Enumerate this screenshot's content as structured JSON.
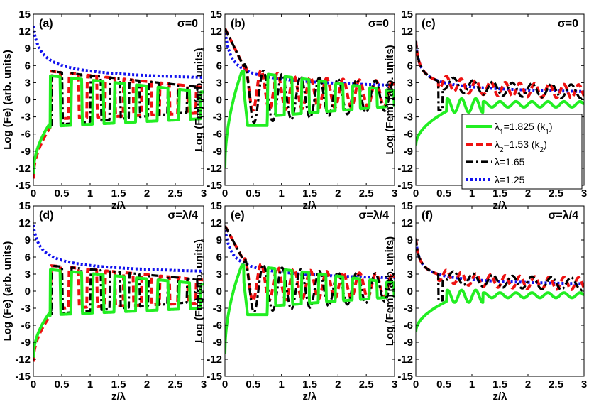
{
  "figure": {
    "x_label": "z/λ",
    "x_ticks": [
      "0",
      "0.5",
      "1",
      "1.5",
      "2",
      "2.5",
      "3"
    ],
    "y_ticks": [
      "-15",
      "-12",
      "-9",
      "-6",
      "-3",
      "0",
      "3",
      "6",
      "9",
      "12",
      "15"
    ],
    "colors": {
      "l1": "#22ee22",
      "l2": "#ee1111",
      "l3": "#000000",
      "l4": "#1111ee"
    }
  },
  "legend": {
    "entries": [
      {
        "main": "λ",
        "sub": "1",
        "rest": "=1.825 (k",
        "sub2": "1",
        "close": ")"
      },
      {
        "main": "λ",
        "sub": "2",
        "rest": "=1.53 (k",
        "sub2": "2",
        "close": ")"
      },
      {
        "main": "λ=1.65"
      },
      {
        "main": "λ=1.25"
      }
    ]
  },
  "chart_data": [
    {
      "type": "line",
      "panel": "(a)",
      "sigma": "σ=0",
      "ylabel": "Log (Fe) (arb. units)",
      "xlim": [
        0,
        3
      ],
      "ylim": [
        -15,
        15
      ],
      "kind": "Fe",
      "amp": 1.0,
      "series": [
        {
          "name": "λ1=1.825 (k1)",
          "period": 0.38
        },
        {
          "name": "λ2=1.53 (k2)",
          "period": 0.32
        },
        {
          "name": "λ=1.65",
          "period": 0.34
        },
        {
          "name": "λ=1.25",
          "period": null
        }
      ],
      "envelope_top": [
        [
          0.0,
          14.0
        ],
        [
          0.5,
          7.5
        ],
        [
          1.0,
          5.8
        ],
        [
          2.0,
          4.0
        ],
        [
          3.0,
          2.8
        ]
      ]
    },
    {
      "type": "line",
      "panel": "(b)",
      "sigma": "σ=0",
      "ylabel": "Log (Fm) (arb. units)",
      "xlim": [
        0,
        3
      ],
      "ylim": [
        -15,
        15
      ],
      "kind": "Fm",
      "amp": 1.0,
      "series": [
        {
          "name": "λ1=1.825 (k1)"
        },
        {
          "name": "λ2=1.53 (k2)"
        },
        {
          "name": "λ=1.65"
        },
        {
          "name": "λ=1.25"
        }
      ]
    },
    {
      "type": "line",
      "panel": "(c)",
      "sigma": "σ=0",
      "ylabel": "Log (Fem) (arb. units)",
      "xlim": [
        0,
        3
      ],
      "ylim": [
        -15,
        15
      ],
      "kind": "Fem",
      "amp": 1.0,
      "series": [
        {
          "name": "λ1=1.825 (k1)"
        },
        {
          "name": "λ2=1.53 (k2)"
        },
        {
          "name": "λ=1.65"
        },
        {
          "name": "λ=1.25"
        }
      ]
    },
    {
      "type": "line",
      "panel": "(d)",
      "sigma": "σ=λ/4",
      "ylabel": "Log (Fe) (arb. units)",
      "xlim": [
        0,
        3
      ],
      "ylim": [
        -15,
        15
      ],
      "kind": "Fe",
      "amp": 0.9,
      "series": [
        {
          "name": "λ1=1.825 (k1)"
        },
        {
          "name": "λ2=1.53 (k2)"
        },
        {
          "name": "λ=1.65"
        },
        {
          "name": "λ=1.25"
        }
      ]
    },
    {
      "type": "line",
      "panel": "(e)",
      "sigma": "σ=λ/4",
      "ylabel": "Log (Fm) (arb. units)",
      "xlim": [
        0,
        3
      ],
      "ylim": [
        -15,
        15
      ],
      "kind": "Fm",
      "amp": 0.92,
      "series": [
        {
          "name": "λ1=1.825 (k1)"
        },
        {
          "name": "λ2=1.53 (k2)"
        },
        {
          "name": "λ=1.65"
        },
        {
          "name": "λ=1.25"
        }
      ]
    },
    {
      "type": "line",
      "panel": "(f)",
      "sigma": "σ=λ/4",
      "ylabel": "Log (Fem) (arb. units)",
      "xlim": [
        0,
        3
      ],
      "ylim": [
        -15,
        15
      ],
      "kind": "Fem",
      "amp": 0.9,
      "series": [
        {
          "name": "λ1=1.825 (k1)"
        },
        {
          "name": "λ2=1.53 (k2)"
        },
        {
          "name": "λ=1.65"
        },
        {
          "name": "λ=1.25"
        }
      ]
    }
  ]
}
